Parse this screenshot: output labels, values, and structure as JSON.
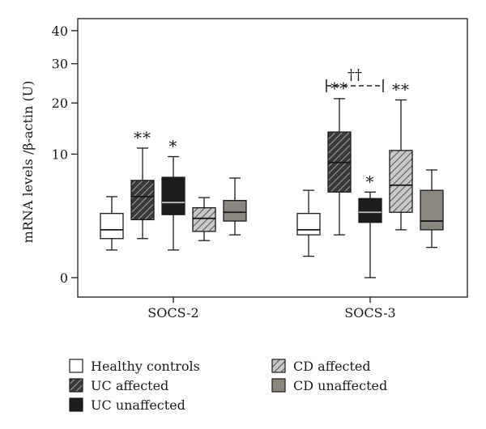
{
  "chart_data": {
    "type": "box",
    "ylabel": "mRNA levels /β-actin (U)",
    "y_ticks": [
      0,
      10,
      20,
      30,
      40
    ],
    "y_scale": "square-root",
    "ylim": [
      0,
      43
    ],
    "categories": [
      "SOCS-2",
      "SOCS-3"
    ],
    "legend_position": "bottom",
    "series": [
      {
        "name": "Healthy controls",
        "fill": "white",
        "color": "#ffffff"
      },
      {
        "name": "UC affected",
        "fill": "dark-hatch",
        "color": "#3a3a3a"
      },
      {
        "name": "UC unaffected",
        "fill": "black",
        "color": "#1c1c1c"
      },
      {
        "name": "CD affected",
        "fill": "light-hatch",
        "color": "#9a9a9a"
      },
      {
        "name": "CD unaffected",
        "fill": "gray",
        "color": "#8c8680"
      }
    ],
    "boxes": [
      {
        "category": "SOCS-2",
        "series": "Healthy controls",
        "min": 0.5,
        "q1": 1.0,
        "median": 1.5,
        "q3": 2.7,
        "max": 4.3,
        "annotation": ""
      },
      {
        "category": "SOCS-2",
        "series": "UC affected",
        "min": 1.0,
        "q1": 2.2,
        "median": 4.3,
        "q3": 6.2,
        "max": 11.0,
        "annotation": "**"
      },
      {
        "category": "SOCS-2",
        "series": "UC unaffected",
        "min": 0.5,
        "q1": 2.6,
        "median": 3.7,
        "q3": 6.6,
        "max": 9.6,
        "annotation": "*"
      },
      {
        "category": "SOCS-2",
        "series": "CD affected",
        "min": 0.9,
        "q1": 1.4,
        "median": 2.3,
        "q3": 3.2,
        "max": 4.2,
        "annotation": ""
      },
      {
        "category": "SOCS-2",
        "series": "CD unaffected",
        "min": 1.2,
        "q1": 2.1,
        "median": 2.8,
        "q3": 3.9,
        "max": 6.5,
        "annotation": ""
      }
    ],
    "boxes_socs3": [
      {
        "category": "SOCS-3",
        "series": "Healthy controls",
        "min": 0.3,
        "q1": 1.2,
        "median": 1.5,
        "q3": 2.7,
        "max": 5.0,
        "annotation": ""
      },
      {
        "category": "SOCS-3",
        "series": "UC affected",
        "min": 1.2,
        "q1": 4.8,
        "median": 8.7,
        "q3": 13.9,
        "max": 21.0,
        "annotation": "**"
      },
      {
        "category": "SOCS-3",
        "series": "UC unaffected",
        "min": 0.0,
        "q1": 2.0,
        "median": 2.8,
        "q3": 4.1,
        "max": 4.8,
        "annotation": "*"
      },
      {
        "category": "SOCS-3",
        "series": "CD affected",
        "min": 1.5,
        "q1": 2.8,
        "median": 5.6,
        "q3": 10.6,
        "max": 20.7,
        "annotation": "**"
      },
      {
        "category": "SOCS-3",
        "series": "CD unaffected",
        "min": 0.6,
        "q1": 1.5,
        "median": 2.1,
        "q3": 5.0,
        "max": 7.6,
        "annotation": ""
      }
    ],
    "comparison": {
      "category": "SOCS-3",
      "from_series": "UC affected",
      "to_series": "UC unaffected",
      "label": "††"
    }
  }
}
